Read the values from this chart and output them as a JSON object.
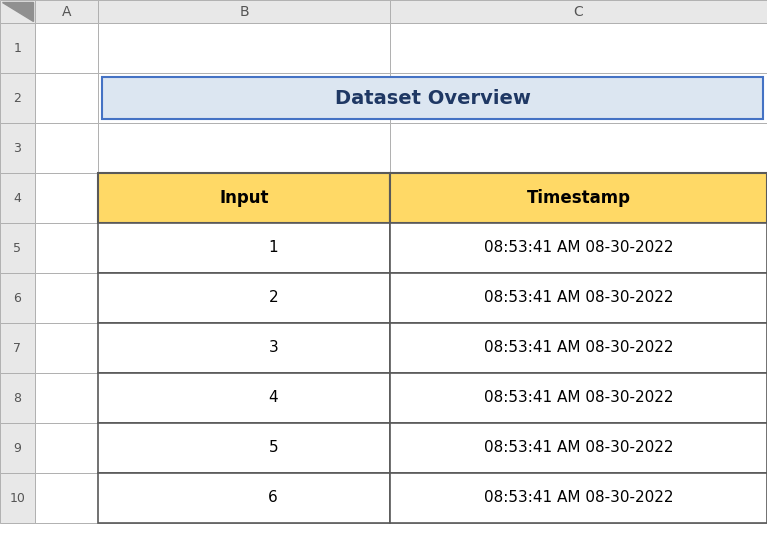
{
  "title": "Dataset Overview",
  "title_bg_color": "#dce6f1",
  "title_border_color": "#4472c4",
  "title_fontsize": 14,
  "title_fontweight": "bold",
  "title_color": "#1f3864",
  "header": [
    "Input",
    "Timestamp"
  ],
  "header_bg_color": "#ffd966",
  "header_border_color": "#595959",
  "rows": [
    [
      "1",
      "08:53:41 AM 08-30-2022"
    ],
    [
      "2",
      "08:53:41 AM 08-30-2022"
    ],
    [
      "3",
      "08:53:41 AM 08-30-2022"
    ],
    [
      "4",
      "08:53:41 AM 08-30-2022"
    ],
    [
      "5",
      "08:53:41 AM 08-30-2022"
    ],
    [
      "6",
      "08:53:41 AM 08-30-2022"
    ]
  ],
  "row_bg_color": "#ffffff",
  "row_border_color": "#595959",
  "cell_fontsize": 11,
  "header_fontsize": 12,
  "bg_color": "#ffffff",
  "col_header_bg": "#e8e8e8",
  "row_header_bg": "#e8e8e8",
  "col_header_border": "#b0b0b0",
  "row_numbers": [
    "1",
    "2",
    "3",
    "4",
    "5",
    "6",
    "7",
    "8",
    "9",
    "10"
  ],
  "col_letters": [
    "A",
    "B",
    "C"
  ],
  "fig_width": 7.67,
  "fig_height": 5.59,
  "dpi": 100,
  "corner_triangle_color": "#909090",
  "row_num_fontsize": 9,
  "col_letter_fontsize": 10,
  "row_header_text_color": "#555555",
  "watermark_color": "#c0d4e8"
}
